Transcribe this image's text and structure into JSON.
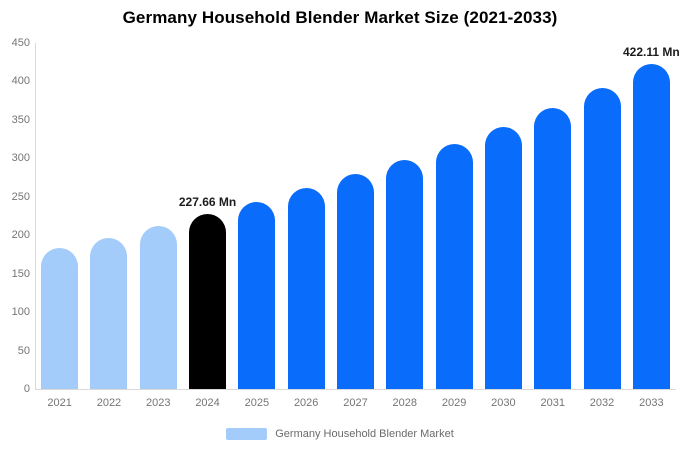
{
  "chart_data": {
    "type": "bar",
    "title": "Germany Household Blender Market Size (2021-2033)",
    "categories": [
      "2021",
      "2022",
      "2023",
      "2024",
      "2025",
      "2026",
      "2027",
      "2028",
      "2029",
      "2030",
      "2031",
      "2032",
      "2033"
    ],
    "values": [
      184,
      197,
      212,
      227.66,
      243,
      261,
      279,
      298,
      318,
      341,
      365,
      391,
      422.11
    ],
    "unit": "Mn",
    "ylim": [
      0,
      450
    ],
    "ytick_step": 50,
    "grid": false,
    "bar_colors": [
      "#a3ccfa",
      "#a3ccfa",
      "#a3ccfa",
      "#000000",
      "#0a6cfb",
      "#0a6cfb",
      "#0a6cfb",
      "#0a6cfb",
      "#0a6cfb",
      "#0a6cfb",
      "#0a6cfb",
      "#0a6cfb",
      "#0a6cfb"
    ],
    "annotations": [
      {
        "category": "2024",
        "text": "227.66 Mn"
      },
      {
        "category": "2033",
        "text": "422.11 Mn"
      }
    ],
    "legend_position": "bottom",
    "legend": {
      "label": "Germany Household Blender Market",
      "swatch_color": "#a3ccfa"
    },
    "colors": {
      "past_bars": "#a3ccfa",
      "forecast_bars": "#0a6cfb",
      "highlight_bar": "#000000",
      "axis_line": "#d9d9d9",
      "tick_label": "#757575",
      "annotation_text": "#1c1c1c",
      "title_text": "#000000",
      "legend_text": "#6b6b6b"
    }
  }
}
